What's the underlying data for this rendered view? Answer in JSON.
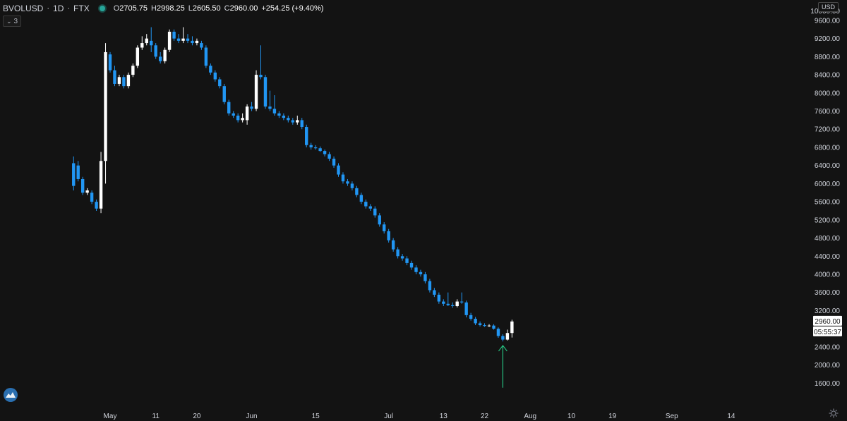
{
  "legend": {
    "symbol": "BVOLUSD",
    "interval": "1D",
    "exchange": "FTX",
    "open_label": "O",
    "open": "2705.75",
    "high_label": "H",
    "high": "2998.25",
    "low_label": "L",
    "low": "2605.50",
    "close_label": "C",
    "close": "2960.00",
    "change": "+254.25 (+9.40%)"
  },
  "indicator_count": "3",
  "currency": "USD",
  "price_tag": "2960.00",
  "countdown": "05:55:37",
  "colors": {
    "background": "#131313",
    "up": "#ffffff",
    "down": "#2196f3",
    "arrow": "#26c281",
    "status_dot": "#26a69a"
  },
  "chart_data": {
    "type": "candlestick",
    "symbol": "BVOLUSD",
    "interval": "1D",
    "ylim": [
      1400,
      10000
    ],
    "y_ticks": [
      "1600.00",
      "2000.00",
      "2400.00",
      "3200.00",
      "3600.00",
      "4000.00",
      "4400.00",
      "4800.00",
      "5200.00",
      "5600.00",
      "6000.00",
      "6400.00",
      "6800.00",
      "7200.00",
      "7600.00",
      "8000.00",
      "8400.00",
      "8800.00",
      "9200.00",
      "9600.00",
      "10000.00"
    ],
    "y_top_label": "10000.00",
    "x_ticks": [
      {
        "label": "May",
        "date": "2020-05-01"
      },
      {
        "label": "11",
        "date": "2020-05-11"
      },
      {
        "label": "20",
        "date": "2020-05-20"
      },
      {
        "label": "Jun",
        "date": "2020-06-01"
      },
      {
        "label": "15",
        "date": "2020-06-15"
      },
      {
        "label": "Jul",
        "date": "2020-07-01"
      },
      {
        "label": "13",
        "date": "2020-07-13"
      },
      {
        "label": "22",
        "date": "2020-07-22"
      },
      {
        "label": "Aug",
        "date": "2020-08-01"
      },
      {
        "label": "10",
        "date": "2020-08-10"
      },
      {
        "label": "19",
        "date": "2020-08-19"
      },
      {
        "label": "Sep",
        "date": "2020-09-01"
      },
      {
        "label": "14",
        "date": "2020-09-14"
      }
    ],
    "candles": [
      {
        "date": "2020-04-23",
        "o": 6450,
        "h": 6600,
        "l": 5850,
        "c": 5950
      },
      {
        "date": "2020-04-24",
        "o": 6400,
        "h": 6500,
        "l": 6050,
        "c": 6100
      },
      {
        "date": "2020-04-25",
        "o": 6100,
        "h": 6150,
        "l": 5750,
        "c": 5800
      },
      {
        "date": "2020-04-26",
        "o": 5800,
        "h": 5900,
        "l": 5750,
        "c": 5850
      },
      {
        "date": "2020-04-27",
        "o": 5800,
        "h": 5850,
        "l": 5550,
        "c": 5600
      },
      {
        "date": "2020-04-28",
        "o": 5600,
        "h": 5650,
        "l": 5400,
        "c": 5450
      },
      {
        "date": "2020-04-29",
        "o": 5450,
        "h": 6700,
        "l": 5350,
        "c": 6500
      },
      {
        "date": "2020-04-30",
        "o": 6500,
        "h": 9100,
        "l": 6000,
        "c": 8900
      },
      {
        "date": "2020-05-01",
        "o": 8850,
        "h": 8900,
        "l": 8450,
        "c": 8500
      },
      {
        "date": "2020-05-02",
        "o": 8500,
        "h": 8600,
        "l": 8150,
        "c": 8200
      },
      {
        "date": "2020-05-03",
        "o": 8200,
        "h": 8400,
        "l": 8150,
        "c": 8350
      },
      {
        "date": "2020-05-04",
        "o": 8350,
        "h": 8400,
        "l": 8100,
        "c": 8150
      },
      {
        "date": "2020-05-05",
        "o": 8150,
        "h": 8450,
        "l": 8100,
        "c": 8400
      },
      {
        "date": "2020-05-06",
        "o": 8400,
        "h": 8650,
        "l": 8350,
        "c": 8600
      },
      {
        "date": "2020-05-07",
        "o": 8600,
        "h": 9050,
        "l": 8550,
        "c": 9000
      },
      {
        "date": "2020-05-08",
        "o": 9000,
        "h": 9250,
        "l": 8950,
        "c": 9100
      },
      {
        "date": "2020-05-09",
        "o": 9100,
        "h": 9300,
        "l": 9050,
        "c": 9200
      },
      {
        "date": "2020-05-10",
        "o": 9150,
        "h": 9450,
        "l": 8900,
        "c": 9050
      },
      {
        "date": "2020-05-11",
        "o": 9050,
        "h": 9100,
        "l": 8750,
        "c": 8800
      },
      {
        "date": "2020-05-12",
        "o": 8800,
        "h": 8900,
        "l": 8650,
        "c": 8700
      },
      {
        "date": "2020-05-13",
        "o": 8700,
        "h": 9000,
        "l": 8650,
        "c": 8950
      },
      {
        "date": "2020-05-14",
        "o": 8950,
        "h": 9400,
        "l": 8900,
        "c": 9350
      },
      {
        "date": "2020-05-15",
        "o": 9350,
        "h": 9400,
        "l": 9150,
        "c": 9200
      },
      {
        "date": "2020-05-16",
        "o": 9200,
        "h": 9300,
        "l": 9100,
        "c": 9150
      },
      {
        "date": "2020-05-17",
        "o": 9150,
        "h": 9450,
        "l": 9100,
        "c": 9200
      },
      {
        "date": "2020-05-18",
        "o": 9200,
        "h": 9300,
        "l": 9100,
        "c": 9150
      },
      {
        "date": "2020-05-19",
        "o": 9150,
        "h": 9250,
        "l": 9050,
        "c": 9100
      },
      {
        "date": "2020-05-20",
        "o": 9100,
        "h": 9200,
        "l": 9050,
        "c": 9150
      },
      {
        "date": "2020-05-21",
        "o": 9100,
        "h": 9150,
        "l": 8950,
        "c": 9000
      },
      {
        "date": "2020-05-22",
        "o": 9000,
        "h": 9050,
        "l": 8550,
        "c": 8600
      },
      {
        "date": "2020-05-23",
        "o": 8600,
        "h": 8650,
        "l": 8400,
        "c": 8450
      },
      {
        "date": "2020-05-24",
        "o": 8450,
        "h": 8500,
        "l": 8250,
        "c": 8300
      },
      {
        "date": "2020-05-25",
        "o": 8300,
        "h": 8350,
        "l": 8100,
        "c": 8150
      },
      {
        "date": "2020-05-26",
        "o": 8150,
        "h": 8200,
        "l": 7750,
        "c": 7800
      },
      {
        "date": "2020-05-27",
        "o": 7800,
        "h": 7850,
        "l": 7500,
        "c": 7550
      },
      {
        "date": "2020-05-28",
        "o": 7550,
        "h": 7600,
        "l": 7450,
        "c": 7500
      },
      {
        "date": "2020-05-29",
        "o": 7500,
        "h": 7550,
        "l": 7350,
        "c": 7400
      },
      {
        "date": "2020-05-30",
        "o": 7400,
        "h": 7550,
        "l": 7350,
        "c": 7450
      },
      {
        "date": "2020-05-31",
        "o": 7400,
        "h": 7750,
        "l": 7300,
        "c": 7700
      },
      {
        "date": "2020-06-01",
        "o": 7700,
        "h": 7800,
        "l": 7600,
        "c": 7650
      },
      {
        "date": "2020-06-02",
        "o": 7650,
        "h": 8500,
        "l": 7600,
        "c": 8400
      },
      {
        "date": "2020-06-03",
        "o": 8400,
        "h": 9050,
        "l": 8300,
        "c": 8350
      },
      {
        "date": "2020-06-04",
        "o": 8350,
        "h": 8400,
        "l": 7650,
        "c": 7700
      },
      {
        "date": "2020-06-05",
        "o": 7700,
        "h": 8050,
        "l": 7600,
        "c": 7650
      },
      {
        "date": "2020-06-06",
        "o": 7650,
        "h": 7950,
        "l": 7500,
        "c": 7550
      },
      {
        "date": "2020-06-07",
        "o": 7550,
        "h": 7600,
        "l": 7450,
        "c": 7500
      },
      {
        "date": "2020-06-08",
        "o": 7500,
        "h": 7550,
        "l": 7400,
        "c": 7450
      },
      {
        "date": "2020-06-09",
        "o": 7450,
        "h": 7500,
        "l": 7350,
        "c": 7400
      },
      {
        "date": "2020-06-10",
        "o": 7400,
        "h": 7450,
        "l": 7300,
        "c": 7350
      },
      {
        "date": "2020-06-11",
        "o": 7350,
        "h": 7500,
        "l": 7300,
        "c": 7400
      },
      {
        "date": "2020-06-12",
        "o": 7400,
        "h": 7450,
        "l": 7200,
        "c": 7250
      },
      {
        "date": "2020-06-13",
        "o": 7250,
        "h": 7300,
        "l": 6800,
        "c": 6850
      },
      {
        "date": "2020-06-14",
        "o": 6850,
        "h": 6900,
        "l": 6750,
        "c": 6800
      },
      {
        "date": "2020-06-15",
        "o": 6800,
        "h": 6850,
        "l": 6750,
        "c": 6780
      },
      {
        "date": "2020-06-16",
        "o": 6780,
        "h": 6820,
        "l": 6700,
        "c": 6720
      },
      {
        "date": "2020-06-17",
        "o": 6720,
        "h": 6750,
        "l": 6600,
        "c": 6650
      },
      {
        "date": "2020-06-18",
        "o": 6650,
        "h": 6700,
        "l": 6500,
        "c": 6550
      },
      {
        "date": "2020-06-19",
        "o": 6550,
        "h": 6600,
        "l": 6350,
        "c": 6400
      },
      {
        "date": "2020-06-20",
        "o": 6400,
        "h": 6450,
        "l": 6150,
        "c": 6200
      },
      {
        "date": "2020-06-21",
        "o": 6200,
        "h": 6250,
        "l": 6000,
        "c": 6050
      },
      {
        "date": "2020-06-22",
        "o": 6050,
        "h": 6100,
        "l": 5950,
        "c": 6000
      },
      {
        "date": "2020-06-23",
        "o": 6000,
        "h": 6050,
        "l": 5850,
        "c": 5900
      },
      {
        "date": "2020-06-24",
        "o": 5900,
        "h": 5950,
        "l": 5700,
        "c": 5750
      },
      {
        "date": "2020-06-25",
        "o": 5750,
        "h": 5800,
        "l": 5550,
        "c": 5600
      },
      {
        "date": "2020-06-26",
        "o": 5600,
        "h": 5650,
        "l": 5450,
        "c": 5500
      },
      {
        "date": "2020-06-27",
        "o": 5500,
        "h": 5550,
        "l": 5400,
        "c": 5450
      },
      {
        "date": "2020-06-28",
        "o": 5450,
        "h": 5500,
        "l": 5250,
        "c": 5300
      },
      {
        "date": "2020-06-29",
        "o": 5300,
        "h": 5350,
        "l": 5050,
        "c": 5100
      },
      {
        "date": "2020-06-30",
        "o": 5100,
        "h": 5150,
        "l": 4900,
        "c": 4950
      },
      {
        "date": "2020-07-01",
        "o": 4950,
        "h": 5000,
        "l": 4700,
        "c": 4750
      },
      {
        "date": "2020-07-02",
        "o": 4750,
        "h": 4800,
        "l": 4500,
        "c": 4550
      },
      {
        "date": "2020-07-03",
        "o": 4550,
        "h": 4600,
        "l": 4350,
        "c": 4400
      },
      {
        "date": "2020-07-04",
        "o": 4400,
        "h": 4450,
        "l": 4300,
        "c": 4350
      },
      {
        "date": "2020-07-05",
        "o": 4350,
        "h": 4400,
        "l": 4200,
        "c": 4250
      },
      {
        "date": "2020-07-06",
        "o": 4250,
        "h": 4300,
        "l": 4100,
        "c": 4150
      },
      {
        "date": "2020-07-07",
        "o": 4150,
        "h": 4200,
        "l": 4000,
        "c": 4050
      },
      {
        "date": "2020-07-08",
        "o": 4050,
        "h": 4100,
        "l": 3950,
        "c": 4000
      },
      {
        "date": "2020-07-09",
        "o": 4000,
        "h": 4050,
        "l": 3800,
        "c": 3850
      },
      {
        "date": "2020-07-10",
        "o": 3850,
        "h": 3900,
        "l": 3600,
        "c": 3650
      },
      {
        "date": "2020-07-11",
        "o": 3650,
        "h": 3700,
        "l": 3500,
        "c": 3550
      },
      {
        "date": "2020-07-12",
        "o": 3550,
        "h": 3600,
        "l": 3350,
        "c": 3400
      },
      {
        "date": "2020-07-13",
        "o": 3400,
        "h": 3450,
        "l": 3300,
        "c": 3350
      },
      {
        "date": "2020-07-14",
        "o": 3350,
        "h": 3600,
        "l": 3300,
        "c": 3320
      },
      {
        "date": "2020-07-15",
        "o": 3320,
        "h": 3380,
        "l": 3260,
        "c": 3300
      },
      {
        "date": "2020-07-16",
        "o": 3300,
        "h": 3450,
        "l": 3270,
        "c": 3400
      },
      {
        "date": "2020-07-17",
        "o": 3400,
        "h": 3600,
        "l": 3350,
        "c": 3380
      },
      {
        "date": "2020-07-18",
        "o": 3380,
        "h": 3420,
        "l": 3050,
        "c": 3100
      },
      {
        "date": "2020-07-19",
        "o": 3100,
        "h": 3150,
        "l": 2980,
        "c": 3020
      },
      {
        "date": "2020-07-20",
        "o": 3020,
        "h": 3060,
        "l": 2880,
        "c": 2920
      },
      {
        "date": "2020-07-21",
        "o": 2920,
        "h": 2960,
        "l": 2850,
        "c": 2880
      },
      {
        "date": "2020-07-22",
        "o": 2880,
        "h": 2920,
        "l": 2840,
        "c": 2860
      },
      {
        "date": "2020-07-23",
        "o": 2860,
        "h": 2900,
        "l": 2840,
        "c": 2870
      },
      {
        "date": "2020-07-24",
        "o": 2870,
        "h": 2900,
        "l": 2780,
        "c": 2800
      },
      {
        "date": "2020-07-25",
        "o": 2800,
        "h": 2830,
        "l": 2600,
        "c": 2640
      },
      {
        "date": "2020-07-26",
        "o": 2640,
        "h": 2680,
        "l": 2520,
        "c": 2560
      },
      {
        "date": "2020-07-27",
        "o": 2560,
        "h": 2780,
        "l": 2540,
        "c": 2705.75
      },
      {
        "date": "2020-07-28",
        "o": 2705.75,
        "h": 2998.25,
        "l": 2605.5,
        "c": 2960
      }
    ],
    "annotation": {
      "type": "arrow",
      "direction": "up",
      "date": "2020-07-26",
      "from_price": 1500,
      "to_price": 2430
    }
  }
}
